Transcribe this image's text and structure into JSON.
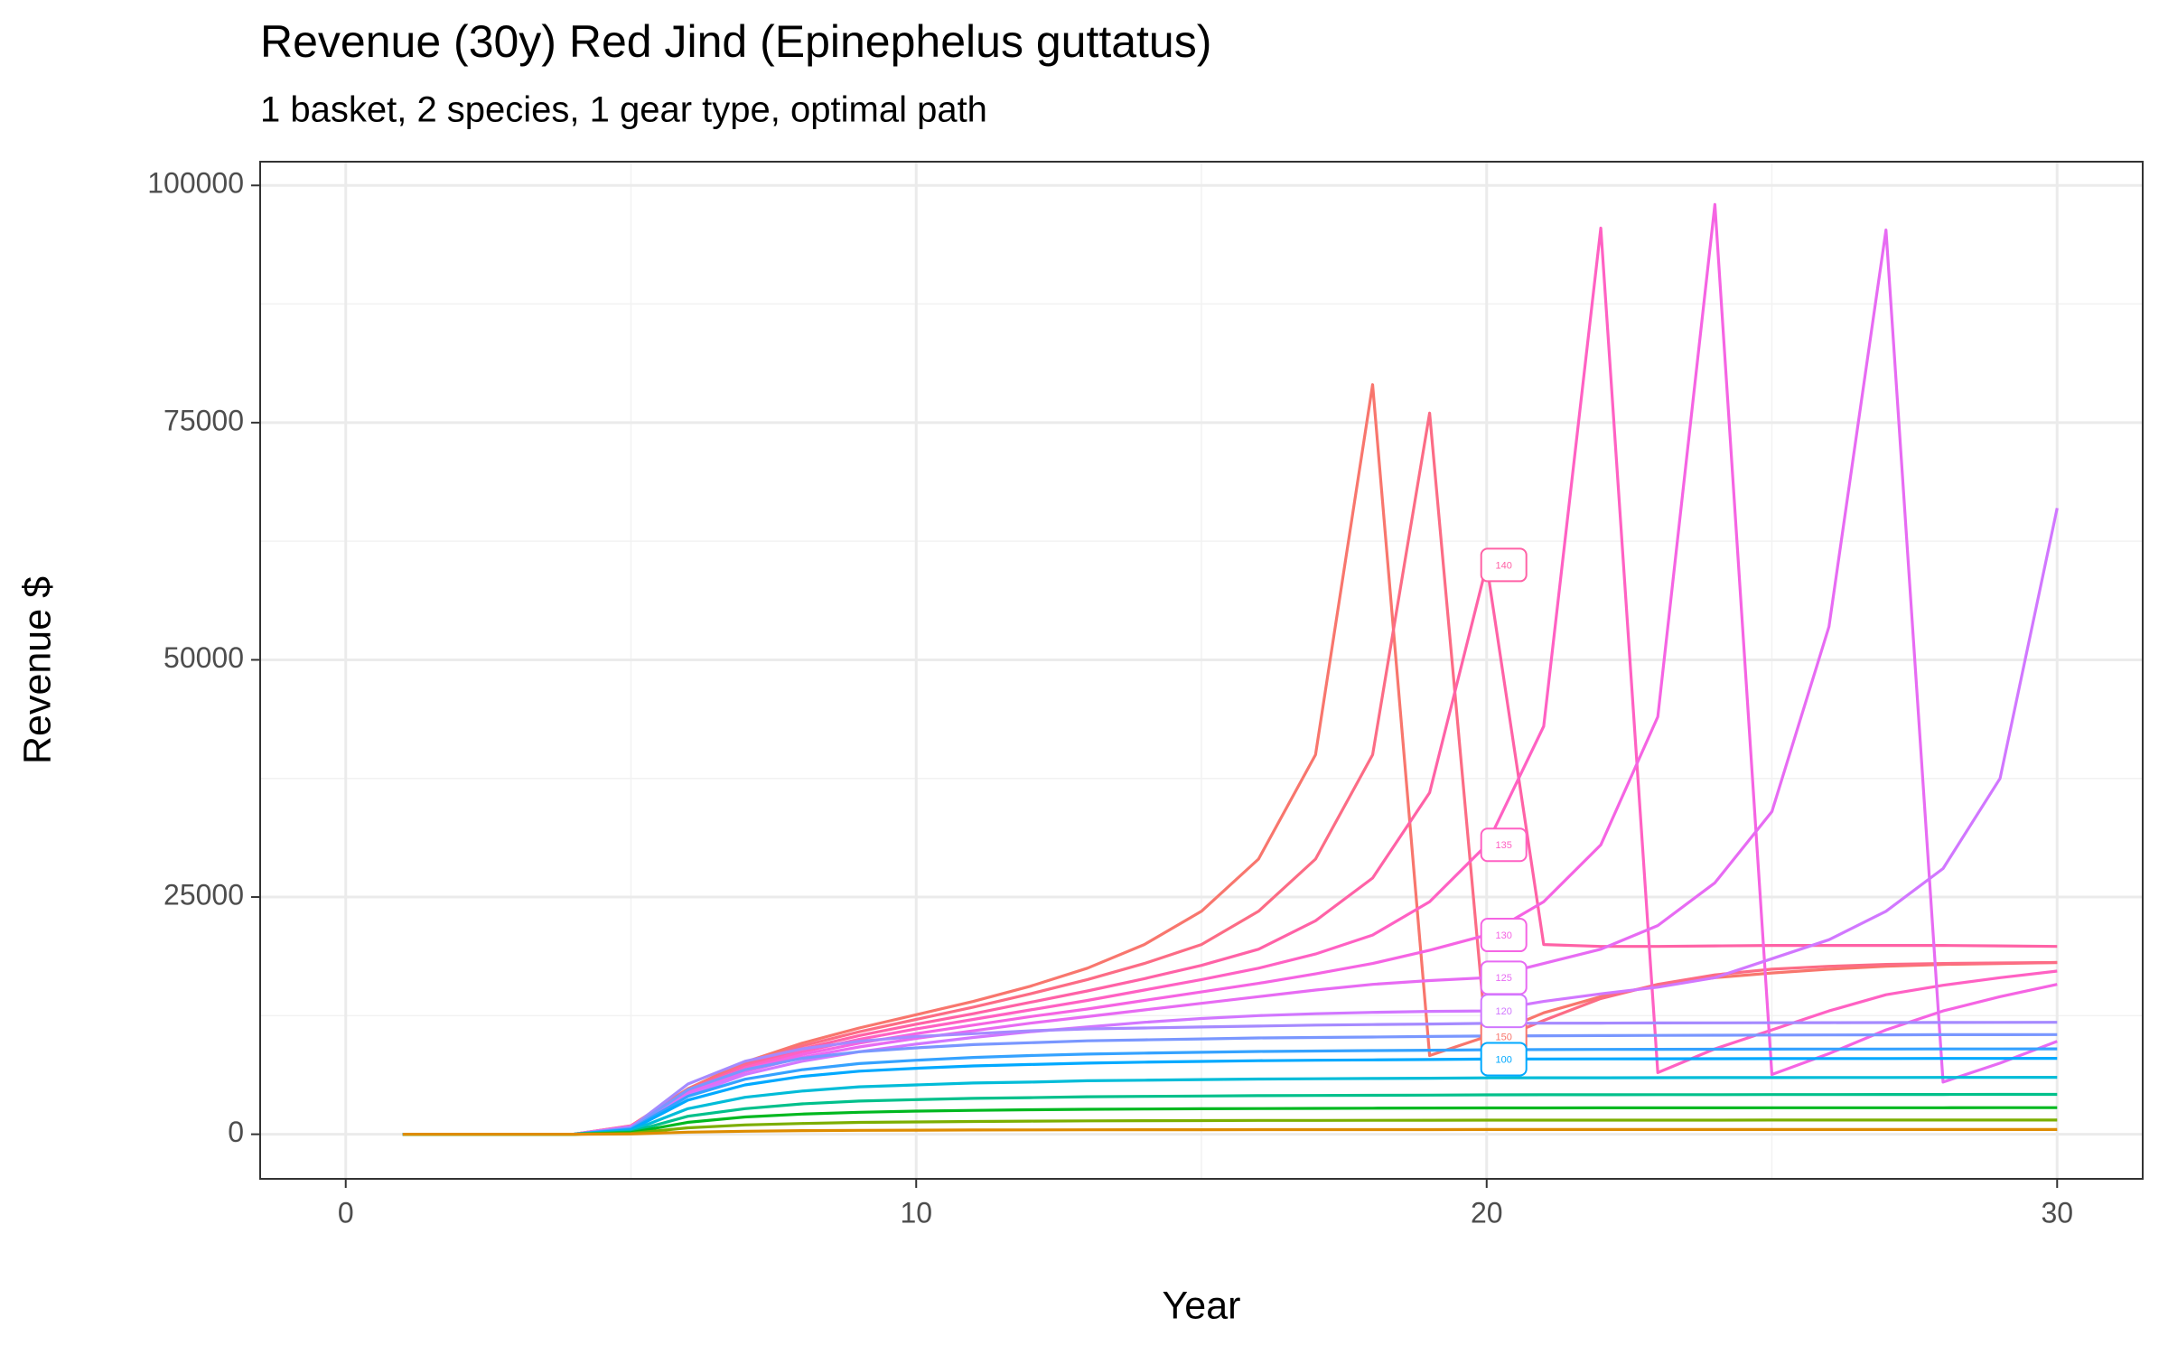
{
  "chart_data": {
    "type": "line",
    "title": "Revenue (30y) Red Jind (Epinephelus guttatus)",
    "subtitle": "1 basket, 2 species, 1 gear type, optimal path",
    "x_label": "Year",
    "y_label": "Revenue $",
    "x": [
      1,
      2,
      3,
      4,
      5,
      6,
      7,
      8,
      9,
      10,
      11,
      12,
      13,
      14,
      15,
      16,
      17,
      18,
      19,
      20,
      21,
      22,
      23,
      24,
      25,
      26,
      27,
      28,
      29,
      30
    ],
    "xlim": [
      -1.5,
      31.5
    ],
    "xticks": [
      0,
      10,
      20,
      30
    ],
    "ylim": [
      -4700,
      102500
    ],
    "yticks": [
      0,
      25000,
      50000,
      75000,
      100000
    ],
    "grid": true,
    "label_x": 20.3,
    "series": [
      {
        "name": "150",
        "color": "#F8766D",
        "values": [
          0,
          0,
          0,
          0,
          900,
          4800,
          7600,
          9600,
          11200,
          12600,
          14000,
          15600,
          17500,
          20000,
          23500,
          29000,
          40000,
          79000,
          8300,
          10300,
          12800,
          14500,
          15700,
          16500,
          17000,
          17400,
          17700,
          17900,
          18000,
          18100
        ]
      },
      {
        "color": "#FC6C85",
        "values": [
          0,
          0,
          0,
          0,
          880,
          4700,
          7400,
          9300,
          10800,
          12100,
          13400,
          14800,
          16300,
          18000,
          20000,
          23500,
          29000,
          40000,
          76000,
          9500,
          12000,
          14300,
          15800,
          16800,
          17400,
          17700,
          17900,
          18000,
          18050,
          18100
        ]
      },
      {
        "name": "140",
        "color": "#FF62A6",
        "values": [
          0,
          0,
          0,
          0,
          860,
          4600,
          7200,
          9000,
          10400,
          11600,
          12700,
          13900,
          15100,
          16400,
          17800,
          19500,
          22500,
          27000,
          36000,
          60000,
          20000,
          19800,
          19800,
          19850,
          19900,
          19900,
          19900,
          19900,
          19850,
          19800
        ]
      },
      {
        "name": "135",
        "color": "#FF61C3",
        "values": [
          0,
          0,
          0,
          0,
          840,
          4500,
          7000,
          8700,
          10000,
          11100,
          12100,
          13100,
          14100,
          15200,
          16300,
          17500,
          19000,
          21000,
          24500,
          30500,
          43000,
          95500,
          6500,
          9000,
          11000,
          13000,
          14700,
          15700,
          16500,
          17200
        ]
      },
      {
        "name": "130",
        "color": "#F564E3",
        "values": [
          0,
          0,
          0,
          0,
          820,
          4400,
          6800,
          8400,
          9600,
          10600,
          11500,
          12400,
          13200,
          14100,
          15000,
          15900,
          16900,
          18000,
          19400,
          21000,
          24500,
          30500,
          44000,
          98000,
          6300,
          8500,
          11000,
          13000,
          14500,
          15800
        ]
      },
      {
        "name": "125",
        "color": "#E76BF3",
        "values": [
          0,
          0,
          0,
          0,
          800,
          4300,
          6600,
          8100,
          9200,
          10100,
          10900,
          11700,
          12400,
          13100,
          13800,
          14500,
          15200,
          15800,
          16200,
          16500,
          18000,
          19500,
          22000,
          26500,
          34000,
          53500,
          95300,
          5500,
          7500,
          9800
        ]
      },
      {
        "name": "120",
        "color": "#D177FF",
        "values": [
          0,
          0,
          0,
          0,
          780,
          4100,
          6300,
          7700,
          8700,
          9500,
          10200,
          10800,
          11300,
          11800,
          12200,
          12500,
          12700,
          12850,
          12950,
          13000,
          14000,
          14800,
          15500,
          16500,
          18500,
          20500,
          23500,
          28000,
          37500,
          66000
        ]
      },
      {
        "color": "#A58AFF",
        "values": [
          0,
          0,
          0,
          0,
          700,
          5300,
          7700,
          9000,
          9800,
          10300,
          10600,
          10900,
          11100,
          11200,
          11300,
          11400,
          11500,
          11560,
          11620,
          11680,
          11700,
          11710,
          11730,
          11740,
          11750,
          11760,
          11770,
          11780,
          11790,
          11800
        ]
      },
      {
        "color": "#7997FF",
        "values": [
          0,
          0,
          0,
          0,
          630,
          4700,
          6800,
          8000,
          8700,
          9100,
          9450,
          9650,
          9850,
          9950,
          10050,
          10150,
          10200,
          10250,
          10300,
          10350,
          10380,
          10400,
          10420,
          10440,
          10460,
          10470,
          10480,
          10490,
          10495,
          10500
        ]
      },
      {
        "color": "#35A2FF",
        "values": [
          0,
          0,
          0,
          0,
          540,
          4000,
          5800,
          6800,
          7450,
          7800,
          8100,
          8300,
          8450,
          8550,
          8640,
          8720,
          8770,
          8820,
          8860,
          8900,
          8920,
          8940,
          8950,
          8960,
          8970,
          8980,
          8985,
          8990,
          8995,
          9000
        ]
      },
      {
        "name": "100",
        "color": "#00A9FF",
        "values": [
          0,
          0,
          0,
          0,
          480,
          3600,
          5200,
          6100,
          6650,
          6950,
          7200,
          7350,
          7500,
          7600,
          7680,
          7750,
          7800,
          7840,
          7880,
          7920,
          7930,
          7940,
          7950,
          7960,
          7970,
          7980,
          7985,
          7990,
          7995,
          8000
        ]
      },
      {
        "color": "#00BCD8",
        "values": [
          0,
          0,
          0,
          0,
          360,
          2700,
          3900,
          4550,
          5000,
          5200,
          5400,
          5500,
          5640,
          5700,
          5760,
          5820,
          5850,
          5880,
          5910,
          5940,
          5950,
          5955,
          5960,
          5970,
          5975,
          5980,
          5985,
          5990,
          5995,
          6000
        ]
      },
      {
        "color": "#00C08B",
        "values": [
          0,
          0,
          0,
          0,
          250,
          1900,
          2700,
          3200,
          3500,
          3650,
          3780,
          3860,
          3950,
          3990,
          4030,
          4070,
          4090,
          4110,
          4130,
          4150,
          4160,
          4165,
          4170,
          4175,
          4180,
          4185,
          4190,
          4195,
          4198,
          4200
        ]
      },
      {
        "color": "#00B81F",
        "values": [
          0,
          0,
          0,
          0,
          170,
          1260,
          1820,
          2130,
          2320,
          2440,
          2520,
          2580,
          2630,
          2660,
          2690,
          2710,
          2730,
          2745,
          2760,
          2770,
          2775,
          2780,
          2783,
          2786,
          2789,
          2792,
          2795,
          2797,
          2799,
          2800
        ]
      },
      {
        "color": "#7CAE00",
        "values": [
          0,
          0,
          0,
          0,
          90,
          680,
          980,
          1140,
          1250,
          1300,
          1350,
          1380,
          1410,
          1430,
          1440,
          1455,
          1460,
          1470,
          1478,
          1485,
          1487,
          1489,
          1490,
          1492,
          1494,
          1496,
          1497,
          1498,
          1499,
          1500
        ]
      },
      {
        "color": "#DE8C00",
        "values": [
          0,
          0,
          0,
          0,
          30,
          220,
          320,
          380,
          410,
          430,
          450,
          460,
          470,
          475,
          480,
          485,
          487,
          490,
          492,
          495,
          495,
          496,
          496,
          497,
          497,
          498,
          498,
          499,
          499,
          500
        ]
      }
    ]
  }
}
